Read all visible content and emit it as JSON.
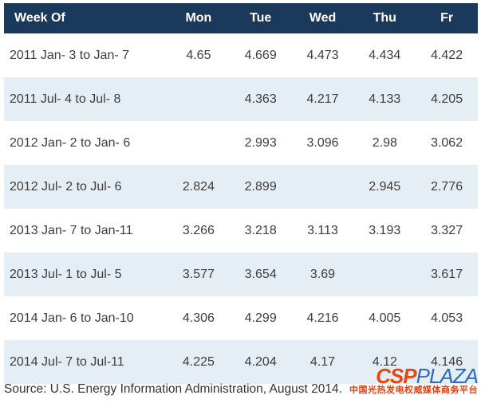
{
  "header": {
    "columns": [
      "Week Of",
      "Mon",
      "Tue",
      "Wed",
      "Thu",
      "Fr"
    ]
  },
  "table": {
    "rows": [
      {
        "week": "2011 Jan- 3 to Jan- 7",
        "cells": [
          "4.65",
          "4.669",
          "4.473",
          "4.434",
          "4.422"
        ]
      },
      {
        "week": "2011 Jul- 4 to Jul- 8",
        "cells": [
          "",
          "4.363",
          "4.217",
          "4.133",
          "4.205"
        ]
      },
      {
        "week": "2012 Jan- 2 to Jan- 6",
        "cells": [
          "",
          "2.993",
          "3.096",
          "2.98",
          "3.062"
        ]
      },
      {
        "week": "2012 Jul- 2 to Jul- 6",
        "cells": [
          "2.824",
          "2.899",
          "",
          "2.945",
          "2.776"
        ]
      },
      {
        "week": "2013 Jan- 7 to Jan-11",
        "cells": [
          "3.266",
          "3.218",
          "3.113",
          "3.193",
          "3.327"
        ]
      },
      {
        "week": "2013 Jul- 1 to Jul- 5",
        "cells": [
          "3.577",
          "3.654",
          "3.69",
          "",
          "3.617"
        ]
      },
      {
        "week": "2014 Jan- 6 to Jan-10",
        "cells": [
          "4.306",
          "4.299",
          "4.216",
          "4.005",
          "4.053"
        ]
      },
      {
        "week": "2014 Jul- 7 to Jul-11",
        "cells": [
          "4.225",
          "4.204",
          "4.17",
          "4.12",
          "4.146"
        ]
      }
    ]
  },
  "footer": {
    "source": "Source: U.S. Energy Information Administration, August 2014."
  },
  "watermark": {
    "csp": "CSP",
    "plaza": "PLAZA",
    "tagline": "中国光热发电权威媒体商务平台"
  },
  "colors": {
    "header_bg": "#1a395b",
    "header_text": "#ffffff",
    "alt_row_bg": "#e6eef5",
    "body_text": "#3d3d3d",
    "logo_csp": "#e8470e",
    "logo_plaza": "#2e6db6",
    "tagline_red": "#e83c0e"
  },
  "chart_data": {
    "type": "table",
    "title": "",
    "columns": [
      "Week Of",
      "Mon",
      "Tue",
      "Wed",
      "Thu",
      "Fr"
    ],
    "rows": [
      [
        "2011 Jan- 3 to Jan- 7",
        4.65,
        4.669,
        4.473,
        4.434,
        4.422
      ],
      [
        "2011 Jul- 4 to Jul- 8",
        null,
        4.363,
        4.217,
        4.133,
        4.205
      ],
      [
        "2012 Jan- 2 to Jan- 6",
        null,
        2.993,
        3.096,
        2.98,
        3.062
      ],
      [
        "2012 Jul- 2 to Jul- 6",
        2.824,
        2.899,
        null,
        2.945,
        2.776
      ],
      [
        "2013 Jan- 7 to Jan-11",
        3.266,
        3.218,
        3.113,
        3.193,
        3.327
      ],
      [
        "2013 Jul- 1 to Jul- 5",
        3.577,
        3.654,
        3.69,
        null,
        3.617
      ],
      [
        "2014 Jan- 6 to Jan-10",
        4.306,
        4.299,
        4.216,
        4.005,
        4.053
      ],
      [
        "2014 Jul- 7 to Jul-11",
        4.225,
        4.204,
        4.17,
        4.12,
        4.146
      ]
    ],
    "source": "Source: U.S. Energy Information Administration, August 2014.",
    "layout": "dark navy header row, alternating white / light-blue data rows, day values center-aligned"
  }
}
